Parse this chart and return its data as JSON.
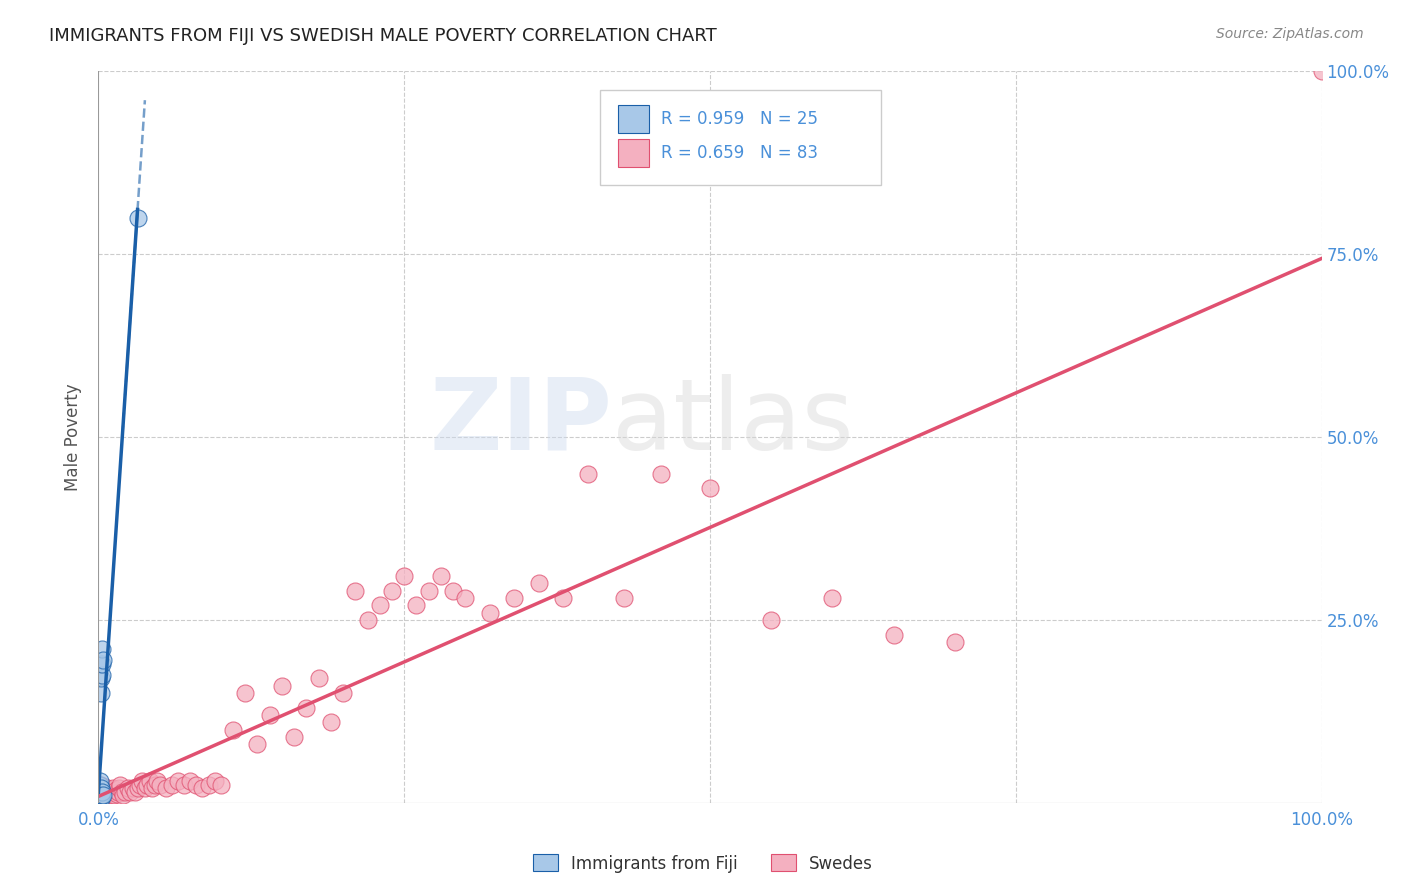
{
  "title": "IMMIGRANTS FROM FIJI VS SWEDISH MALE POVERTY CORRELATION CHART",
  "source": "Source: ZipAtlas.com",
  "ylabel": "Male Poverty",
  "legend1_label": "Immigrants from Fiji",
  "legend2_label": "Swedes",
  "r1": 0.959,
  "n1": 25,
  "r2": 0.659,
  "n2": 83,
  "blue_scatter_color": "#a8c8e8",
  "blue_line_color": "#1a5fa8",
  "pink_scatter_color": "#f4b0c0",
  "pink_line_color": "#e05070",
  "axis_label_color": "#4a90d9",
  "title_color": "#222222",
  "grid_color": "#cccccc",
  "background_color": "#ffffff",
  "fiji_x": [
    0.001,
    0.001,
    0.001,
    0.001,
    0.001,
    0.001,
    0.001,
    0.001,
    0.001,
    0.001,
    0.002,
    0.002,
    0.002,
    0.002,
    0.002,
    0.002,
    0.002,
    0.003,
    0.003,
    0.003,
    0.003,
    0.003,
    0.004,
    0.004,
    0.032
  ],
  "fiji_y": [
    0.005,
    0.008,
    0.01,
    0.012,
    0.015,
    0.018,
    0.02,
    0.022,
    0.025,
    0.03,
    0.005,
    0.01,
    0.015,
    0.02,
    0.15,
    0.17,
    0.19,
    0.01,
    0.015,
    0.175,
    0.19,
    0.21,
    0.01,
    0.195,
    0.8
  ],
  "swedes_x": [
    0.001,
    0.001,
    0.002,
    0.002,
    0.003,
    0.003,
    0.004,
    0.004,
    0.005,
    0.005,
    0.006,
    0.007,
    0.008,
    0.009,
    0.01,
    0.011,
    0.012,
    0.013,
    0.014,
    0.015,
    0.016,
    0.017,
    0.018,
    0.019,
    0.02,
    0.022,
    0.024,
    0.026,
    0.028,
    0.03,
    0.032,
    0.034,
    0.036,
    0.038,
    0.04,
    0.042,
    0.044,
    0.046,
    0.048,
    0.05,
    0.055,
    0.06,
    0.065,
    0.07,
    0.075,
    0.08,
    0.085,
    0.09,
    0.095,
    0.1,
    0.11,
    0.12,
    0.13,
    0.14,
    0.15,
    0.16,
    0.17,
    0.18,
    0.19,
    0.2,
    0.21,
    0.22,
    0.23,
    0.24,
    0.25,
    0.26,
    0.27,
    0.28,
    0.29,
    0.3,
    0.32,
    0.34,
    0.36,
    0.38,
    0.4,
    0.43,
    0.46,
    0.5,
    0.55,
    0.6,
    0.65,
    0.7,
    1.0
  ],
  "swedes_y": [
    0.01,
    0.02,
    0.015,
    0.025,
    0.01,
    0.02,
    0.008,
    0.018,
    0.012,
    0.022,
    0.01,
    0.015,
    0.012,
    0.018,
    0.01,
    0.015,
    0.02,
    0.01,
    0.018,
    0.012,
    0.015,
    0.02,
    0.025,
    0.015,
    0.01,
    0.015,
    0.02,
    0.015,
    0.02,
    0.015,
    0.02,
    0.025,
    0.03,
    0.02,
    0.025,
    0.03,
    0.02,
    0.025,
    0.03,
    0.025,
    0.02,
    0.025,
    0.03,
    0.025,
    0.03,
    0.025,
    0.02,
    0.025,
    0.03,
    0.025,
    0.1,
    0.15,
    0.08,
    0.12,
    0.16,
    0.09,
    0.13,
    0.17,
    0.11,
    0.15,
    0.29,
    0.25,
    0.27,
    0.29,
    0.31,
    0.27,
    0.29,
    0.31,
    0.29,
    0.28,
    0.26,
    0.28,
    0.3,
    0.28,
    0.45,
    0.28,
    0.45,
    0.43,
    0.25,
    0.28,
    0.23,
    0.22,
    1.0
  ],
  "xlim": [
    0.0,
    1.0
  ],
  "ylim": [
    0.0,
    1.0
  ]
}
